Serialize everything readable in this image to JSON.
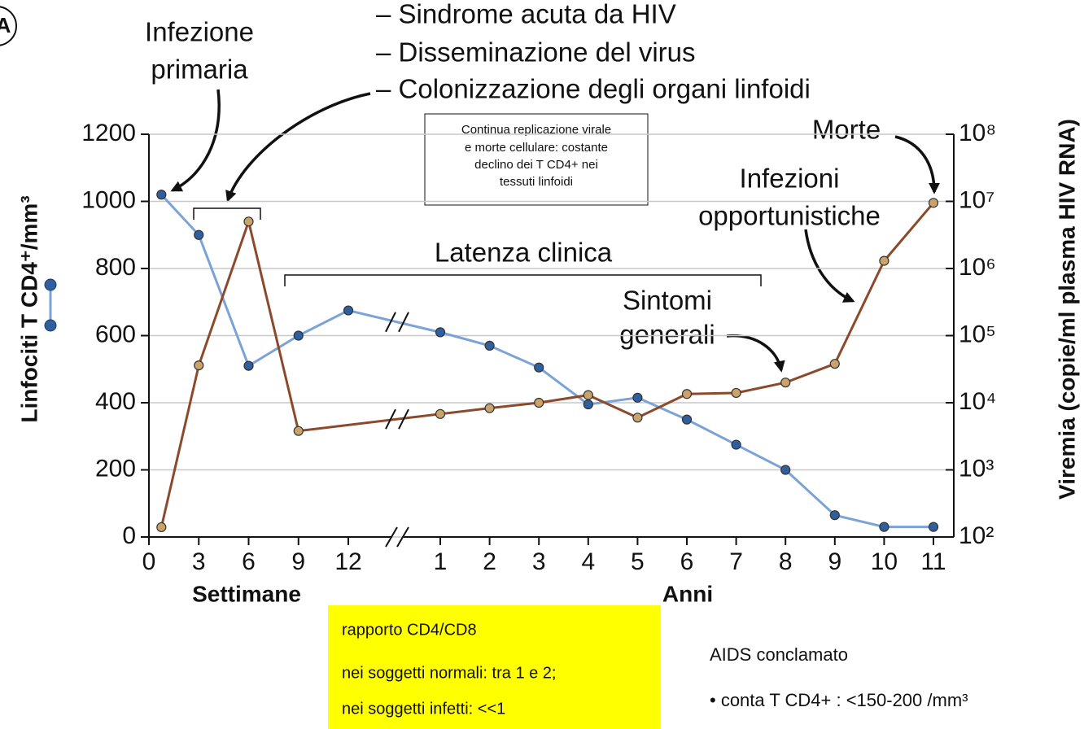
{
  "chart_data": {
    "type": "line",
    "panel_label": "A",
    "y_label": "Linfociti T CD4⁺/mm³",
    "y2_label": "Viremia (copie/ml plasma HIV RNA)",
    "x_segments": [
      {
        "label": "Settimane",
        "xlim": [
          0,
          12
        ],
        "xticks": [
          0,
          3,
          6,
          9,
          12
        ]
      },
      {
        "label": "Anni",
        "xlim": [
          1,
          11
        ],
        "xticks": [
          1,
          2,
          3,
          4,
          5,
          6,
          7,
          8,
          9,
          10,
          11
        ]
      }
    ],
    "ylim": [
      0,
      1200
    ],
    "yticks": [
      0,
      200,
      400,
      600,
      800,
      1000,
      1200
    ],
    "y2lim": [
      100,
      100000000
    ],
    "y2log": true,
    "y2ticks": [
      {
        "value": 100,
        "label": "10²"
      },
      {
        "value": 1000,
        "label": "10³"
      },
      {
        "value": 10000,
        "label": "10⁴"
      },
      {
        "value": 100000,
        "label": "10⁵"
      },
      {
        "value": 1000000,
        "label": "10⁶"
      },
      {
        "value": 10000000,
        "label": "10⁷"
      },
      {
        "value": 100000000,
        "label": "10⁸"
      }
    ],
    "grid": true,
    "series": [
      {
        "color": "#7ba3d6",
        "marker": "#2f5f9e",
        "axis": "y",
        "segments": [
          {
            "x": [
              0.75,
              3,
              6,
              9,
              12
            ],
            "values": [
              1020,
              900,
              510,
              600,
              675
            ]
          },
          {
            "x": [
              1,
              2,
              3,
              4,
              5,
              6,
              7,
              8,
              9,
              10,
              11
            ],
            "values": [
              610,
              570,
              505,
              395,
              415,
              350,
              275,
              200,
              65,
              30,
              30
            ]
          }
        ]
      },
      {
        "color": "#8b4a2b",
        "marker": "#c9a36a",
        "axis": "y2",
        "segments": [
          {
            "x": [
              0.75,
              3,
              6,
              9
            ],
            "values": [
              140,
              36000,
              5000000,
              3800
            ]
          },
          {
            "x": [
              1,
              2,
              3,
              4,
              5,
              6,
              7,
              8,
              9,
              10,
              11
            ],
            "values": [
              6800,
              8300,
              10000,
              13000,
              6000,
              13500,
              14000,
              20000,
              38000,
              1300000,
              9500000
            ]
          }
        ]
      }
    ],
    "annotations": {
      "primary": [
        "Infezione",
        "primaria"
      ],
      "acute": [
        "– Sindrome acuta da HIV",
        "– Disseminazione del virus",
        "– Colonizzazione degli organi linfoidi"
      ],
      "box": [
        "Continua replicazione virale",
        "e morte cellulare: costante",
        "declino dei T CD4+ nei",
        "tessuti linfoidi"
      ],
      "latency": "Latenza clinica",
      "symptoms": [
        "Sintomi",
        "generali"
      ],
      "opportunistic": [
        "Infezioni",
        "opportunistiche"
      ],
      "death": "Morte",
      "ratio": [
        "rapporto CD4/CD8",
        "nei soggetti normali: tra 1 e 2;",
        "nei soggetti infetti: <<1"
      ],
      "aids": [
        "AIDS conclamato",
        "• conta T CD4+ : <150-200 /mm³"
      ]
    }
  }
}
